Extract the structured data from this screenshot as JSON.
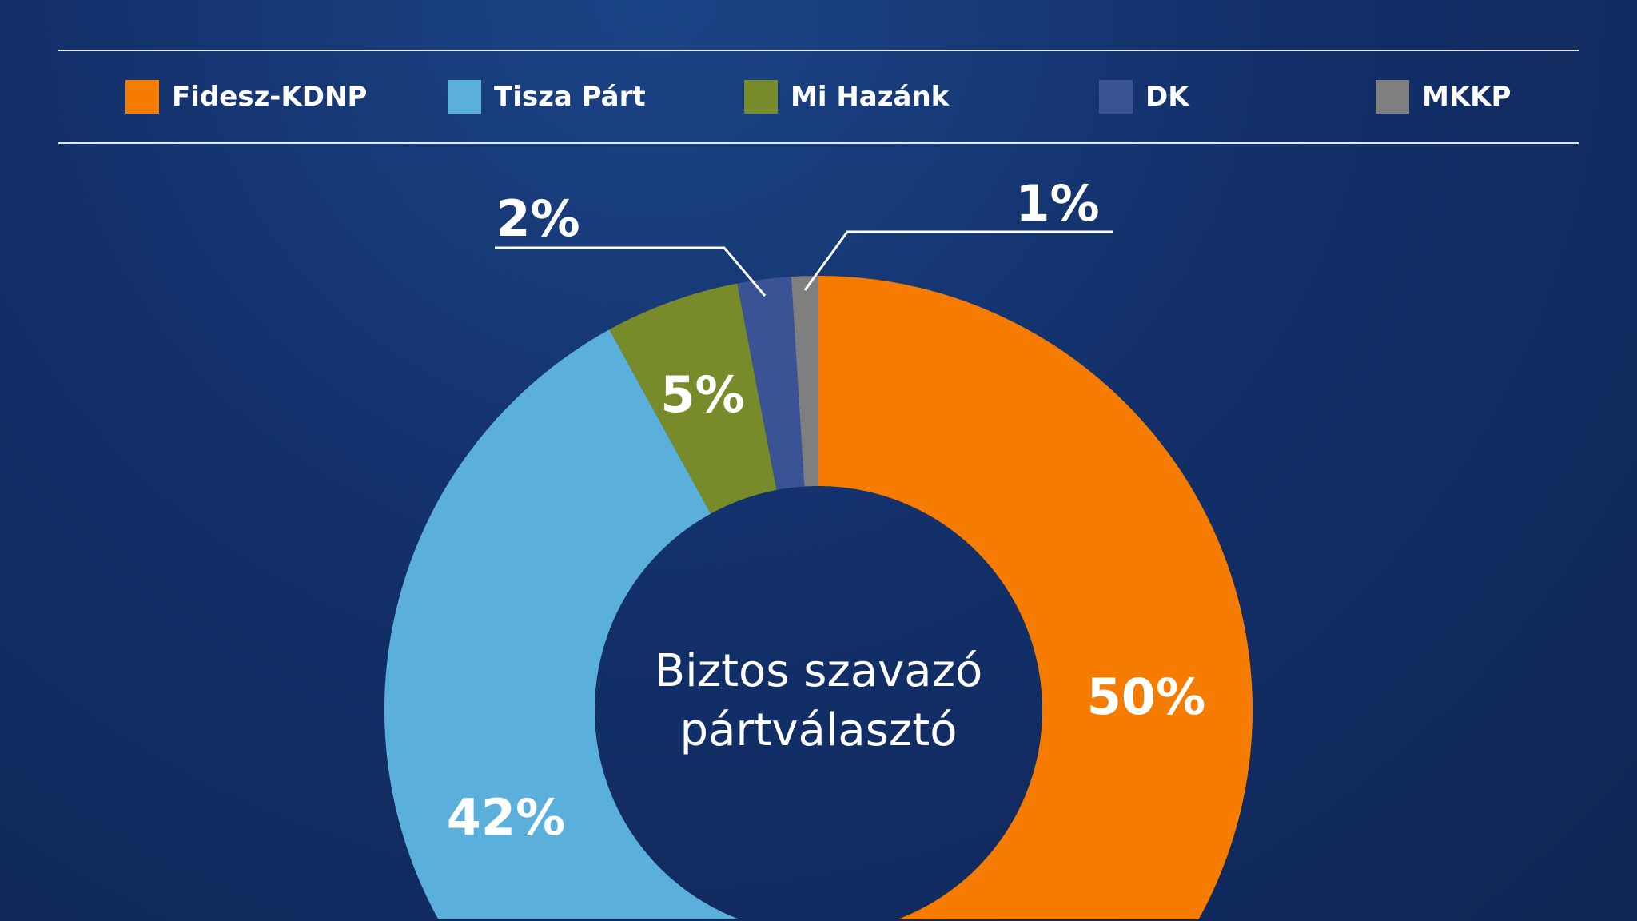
{
  "chart_data": {
    "type": "pie",
    "variant": "donut",
    "center_label": [
      "Biztos szavazó",
      "pártválasztó"
    ],
    "legend_placement": "top",
    "slices": [
      {
        "name": "Fidesz-KDNP",
        "value": 50,
        "label": "50%",
        "color": "#f57c00"
      },
      {
        "name": "Tisza Párt",
        "value": 42,
        "label": "42%",
        "color": "#5ab0da"
      },
      {
        "name": "Mi Hazánk",
        "value": 5,
        "label": "5%",
        "color": "#778b2a"
      },
      {
        "name": "DK",
        "value": 2,
        "label": "2%",
        "color": "#3a5394"
      },
      {
        "name": "MKKP",
        "value": 1,
        "label": "1%",
        "color": "#7f7f7f"
      }
    ]
  }
}
